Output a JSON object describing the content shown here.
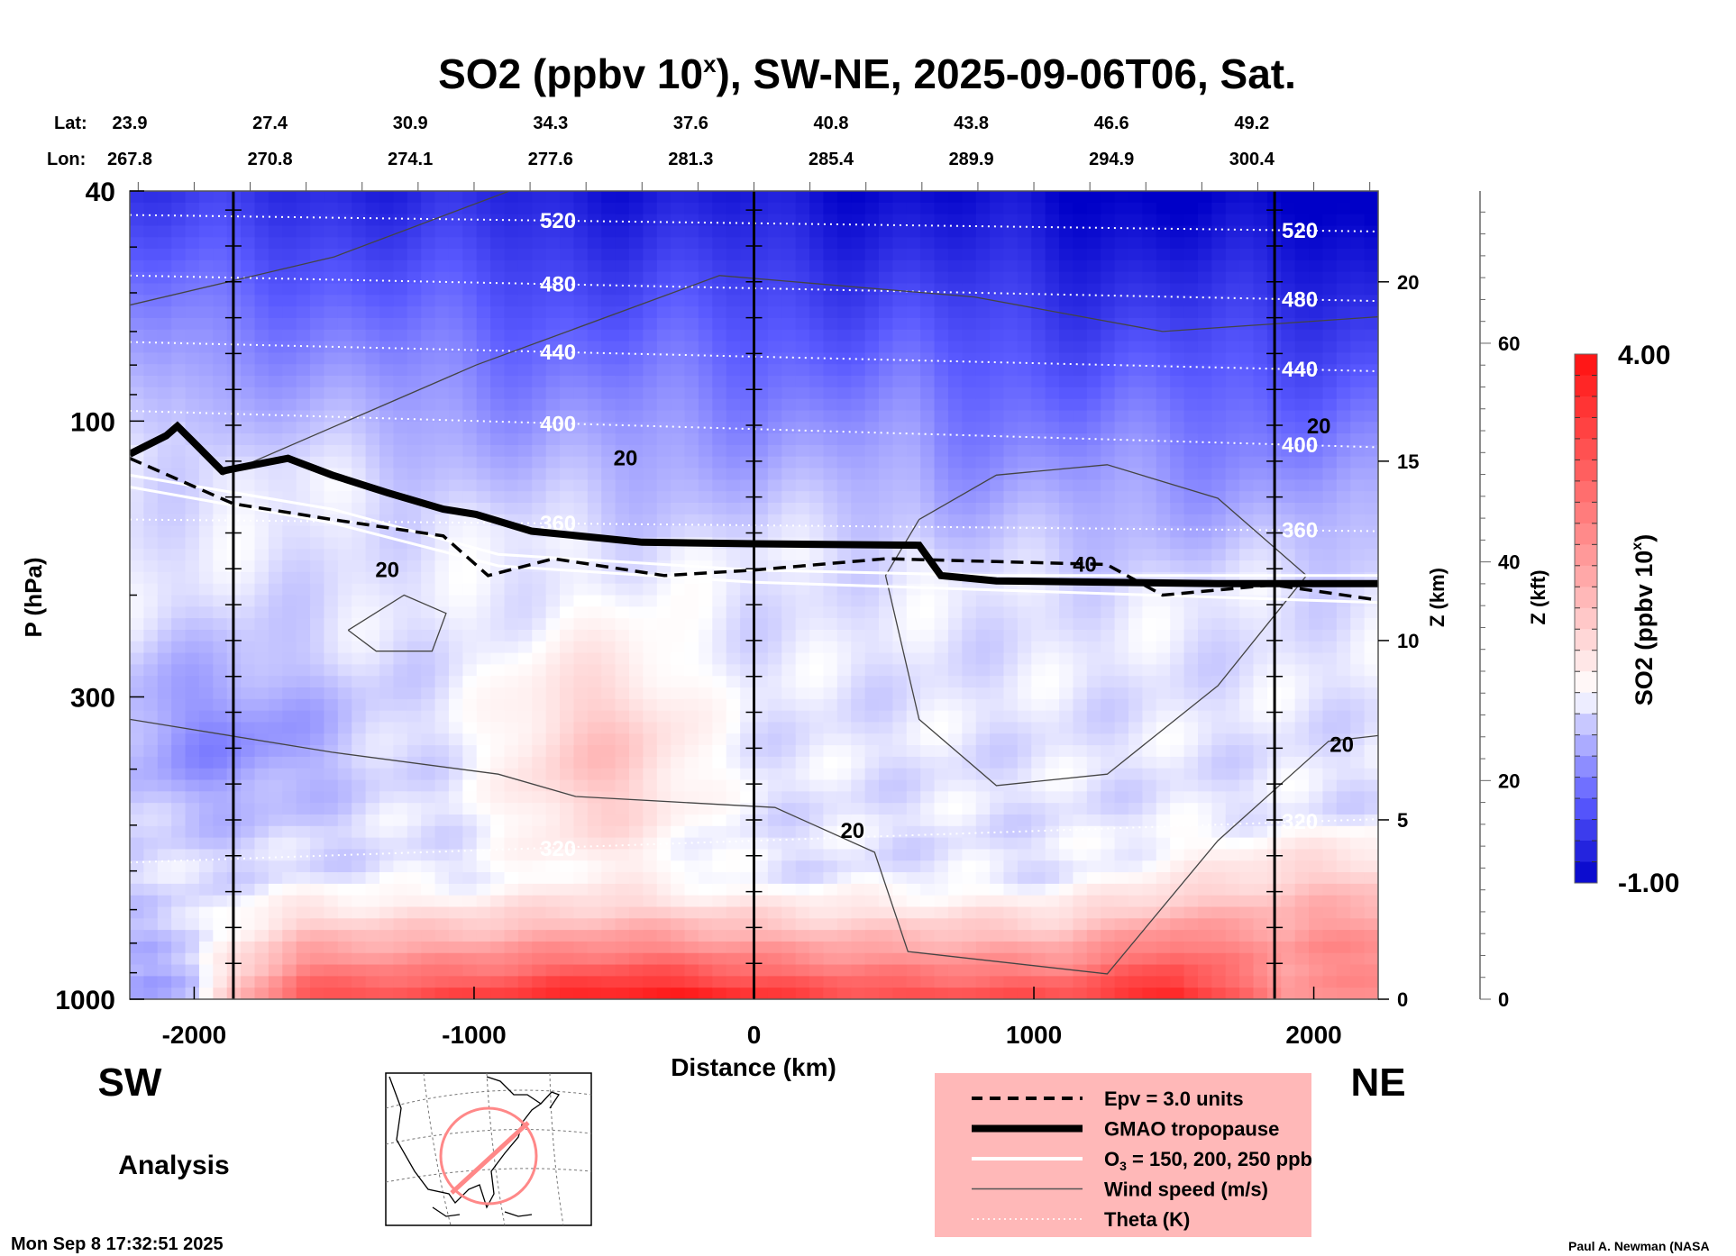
{
  "chart_data": {
    "type": "heatmap",
    "title": "SO2 (ppbv 10",
    "title_sup": "x",
    "title_rest": "), SW-NE, 2025-09-06T06, Sat.",
    "xlabel": "Distance (km)",
    "ylabel": "P (hPa)",
    "xlim": [
      -2230,
      2230
    ],
    "ylim_hpa": [
      1000,
      40
    ],
    "x_ticks": [
      -2000,
      -1000,
      0,
      1000,
      2000
    ],
    "y_ticks": [
      40,
      100,
      300,
      1000
    ],
    "z_km_label": "Z (km)",
    "z_km_ticks": [
      0,
      5,
      10,
      15,
      20
    ],
    "z_kft_label": "Z (kft)",
    "z_kft_ticks": [
      0,
      20,
      40,
      60
    ],
    "lat_label": "Lat:",
    "lon_label": "Lon:",
    "lat": [
      "23.9",
      "27.4",
      "30.9",
      "34.3",
      "37.6",
      "40.8",
      "43.8",
      "46.6",
      "49.2"
    ],
    "lon": [
      "267.8",
      "270.8",
      "274.1",
      "277.6",
      "281.3",
      "285.4",
      "289.9",
      "294.9",
      "300.4"
    ],
    "section_lines_km": [
      -1860,
      0,
      1860
    ],
    "colorbar": {
      "label": "SO2 (ppbv 10",
      "label_sup": "x",
      "label_end": ")",
      "min": -1.0,
      "max": 4.0,
      "min_label": "-1.00",
      "max_label": "4.00",
      "low_color": "#0000c8",
      "mid_color": "#ffffff",
      "high_color": "#ff1010"
    },
    "tropopause": [
      [
        -2230,
        114
      ],
      [
        -2100,
        106
      ],
      [
        -2060,
        102
      ],
      [
        -2000,
        109
      ],
      [
        -1900,
        122
      ],
      [
        -1785,
        119
      ],
      [
        -1665,
        116
      ],
      [
        -1507,
        124
      ],
      [
        -1310,
        133
      ],
      [
        -1110,
        142
      ],
      [
        -993,
        145
      ],
      [
        -795,
        155
      ],
      [
        -400,
        162
      ],
      [
        0,
        163
      ],
      [
        590,
        164
      ],
      [
        668,
        185
      ],
      [
        866,
        189
      ],
      [
        1657,
        191
      ],
      [
        2230,
        191
      ]
    ],
    "epv": [
      [
        -2230,
        116
      ],
      [
        -1860,
        139
      ],
      [
        -1507,
        148
      ],
      [
        -1110,
        158
      ],
      [
        -950,
        185
      ],
      [
        -716,
        173
      ],
      [
        -320,
        185
      ],
      [
        0,
        181
      ],
      [
        470,
        173
      ],
      [
        866,
        175
      ],
      [
        1260,
        177
      ],
      [
        1460,
        200
      ],
      [
        1855,
        192
      ],
      [
        2230,
        204
      ]
    ],
    "ozone": [
      [
        [
          -2230,
          124
        ],
        [
          -1507,
          142
        ],
        [
          -914,
          170
        ],
        [
          0,
          181
        ],
        [
          866,
          185
        ],
        [
          2230,
          185
        ]
      ],
      [
        [
          -2230,
          130
        ],
        [
          -1507,
          150
        ],
        [
          -914,
          178
        ],
        [
          0,
          190
        ],
        [
          866,
          196
        ],
        [
          2230,
          206
        ]
      ]
    ],
    "wind": [
      [
        [
          -2230,
          63
        ],
        [
          -1500,
          52
        ],
        [
          -874,
          40
        ]
      ],
      [
        [
          -1900,
          124
        ],
        [
          -993,
          80
        ],
        [
          -123,
          56
        ],
        [
          787,
          61
        ],
        [
          1460,
          70
        ],
        [
          2230,
          66
        ]
      ],
      [
        [
          -2230,
          328
        ],
        [
          -1507,
          374
        ],
        [
          -914,
          408
        ],
        [
          -637,
          446
        ],
        [
          75,
          466
        ],
        [
          431,
          557
        ],
        [
          550,
          827
        ],
        [
          1262,
          904
        ],
        [
          1657,
          532
        ],
        [
          2053,
          358
        ],
        [
          2230,
          350
        ]
      ],
      [
        [
          590,
          148
        ],
        [
          470,
          185
        ],
        [
          590,
          328
        ],
        [
          866,
          427
        ],
        [
          1262,
          408
        ],
        [
          1657,
          287
        ],
        [
          1974,
          185
        ],
        [
          1657,
          136
        ],
        [
          1262,
          119
        ],
        [
          866,
          124
        ],
        [
          590,
          148
        ]
      ],
      [
        [
          -1450,
          230
        ],
        [
          -1250,
          200
        ],
        [
          -1100,
          215
        ],
        [
          -1150,
          250
        ],
        [
          -1350,
          250
        ],
        [
          -1450,
          230
        ]
      ]
    ],
    "wind_labels": [
      {
        "text": "20",
        "x": -459,
        "p": 116
      },
      {
        "text": "20",
        "x": -1310,
        "p": 181
      },
      {
        "text": "20",
        "x": 352,
        "p": 511
      },
      {
        "text": "20",
        "x": 2100,
        "p": 363
      },
      {
        "text": "20",
        "x": 2018,
        "p": 102
      },
      {
        "text": "40",
        "x": 1182,
        "p": 177
      }
    ],
    "theta": [
      {
        "label": "520",
        "left": 44,
        "right": 47
      },
      {
        "label": "480",
        "left": 56,
        "right": 62
      },
      {
        "label": "440",
        "left": 73,
        "right": 82
      },
      {
        "label": "400",
        "left": 96,
        "right": 111
      },
      {
        "label": "360",
        "left": 148,
        "right": 155
      },
      {
        "label": "320",
        "left": 580,
        "right": 488
      }
    ],
    "field_range": [
      -1.0,
      4.0
    ]
  },
  "labels": {
    "sw": "SW",
    "ne": "NE",
    "analysis": "Analysis",
    "timestamp": "Mon Sep  8 17:32:51 2025",
    "credit": "Paul A. Newman (NASA"
  },
  "legend": {
    "items": [
      {
        "label": "Epv = 3.0 units",
        "style": "dashed"
      },
      {
        "label": "GMAO tropopause",
        "style": "thick"
      },
      {
        "label": "O",
        "sub": "3",
        "rest": " = 150, 200, 250 ppb",
        "style": "white"
      },
      {
        "label": "Wind speed (m/s)",
        "style": "thin"
      },
      {
        "label": "Theta (K)",
        "style": "dotted"
      }
    ],
    "bg_color": "#ffb8b8"
  }
}
